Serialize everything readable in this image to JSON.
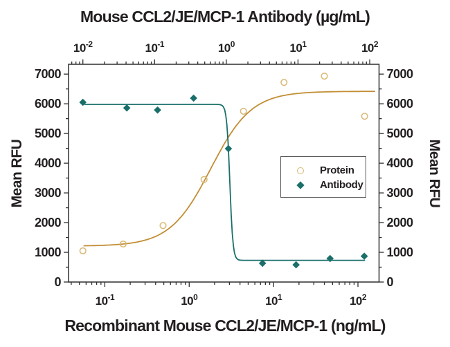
{
  "colors": {
    "protein_line": "#c28e35",
    "protein_marker": "#d9b873",
    "antibody": "#1a6f6a",
    "axis": "#2f2e2e",
    "text": "#231f20",
    "background": "#ffffff"
  },
  "legend": {
    "items": [
      {
        "label": "Protein",
        "marker": "circle"
      },
      {
        "label": "Antibody",
        "marker": "diamond"
      }
    ]
  },
  "chart_data": {
    "type": "scatter",
    "title": "Mouse CCL2/JE/MCP-1 Antibody (µg/mL)",
    "grid": false,
    "legend_position": "inside-right-middle",
    "y_axis": {
      "label": "Mean RFU",
      "min": 0,
      "max": 7330,
      "major_step": 1000,
      "minor_step": 500,
      "tick_values": [
        0,
        1000,
        2000,
        3000,
        4000,
        5000,
        6000,
        7000
      ]
    },
    "x_axis_top": {
      "label": "Mouse CCL2/JE/MCP-1 Antibody (µg/mL)",
      "unit": "µg/mL",
      "scale": "log",
      "min_exp": -2.2,
      "max_exp": 2.13,
      "tick_exps": [
        -2,
        -1,
        0,
        1,
        2
      ]
    },
    "x_axis_bottom": {
      "label": "Recombinant Mouse CCL2/JE/MCP-1 (ng/mL)",
      "unit": "ng/mL",
      "scale": "log",
      "min_exp": -1.43,
      "max_exp": 2.25,
      "tick_exps": [
        -1,
        0,
        1,
        2
      ]
    },
    "series": [
      {
        "name": "Protein",
        "axis": "bottom",
        "marker": "circle",
        "color": "#c28e35",
        "marker_color": "#d9b873",
        "points": {
          "x": [
            0.055,
            0.165,
            0.49,
            1.5,
            4.4,
            13.3,
            40,
            120
          ],
          "y": [
            1050,
            1280,
            1900,
            3450,
            5750,
            6720,
            6930,
            5580
          ]
        },
        "curve": {
          "model": "4PL",
          "bottom": 1210,
          "top": 6420,
          "ec50": 1.8,
          "hill": 1.8,
          "x_min": 0.056,
          "x_max": 160
        }
      },
      {
        "name": "Antibody",
        "axis": "top",
        "marker": "diamond",
        "color": "#1a6f6a",
        "marker_color": "#1a6f6a",
        "points": {
          "x": [
            0.01,
            0.041,
            0.11,
            0.35,
            1.07,
            3.2,
            9.4,
            28,
            84
          ],
          "y": [
            6050,
            5860,
            5790,
            6190,
            4490,
            630,
            580,
            790,
            870
          ]
        },
        "curve": {
          "model": "4PL",
          "bottom": 730,
          "top": 5980,
          "ec50": 1.12,
          "hill": -20,
          "x_min": 0.0105,
          "x_max": 86
        }
      }
    ]
  }
}
